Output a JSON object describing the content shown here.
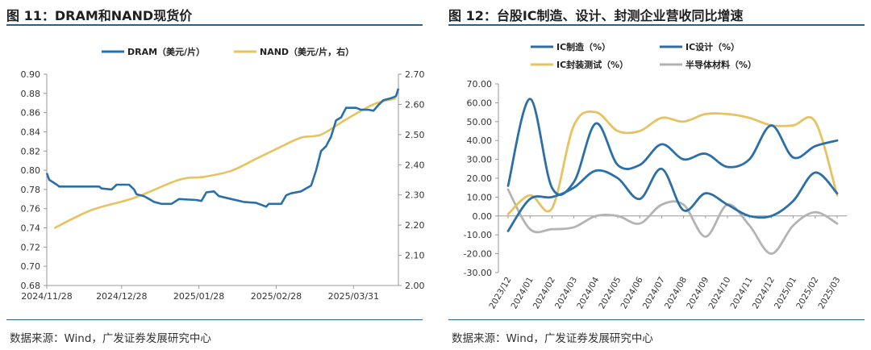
{
  "panel_left": {
    "title": "图 11：DRAM和NAND现货价",
    "source": "数据来源：Wind，广发证券发展研究中心"
  },
  "panel_right": {
    "title": "图 12：台股IC制造、设计、封测企业营收同比增速",
    "source": "数据来源：Wind，广发证券发展研究中心"
  },
  "chart_data": [
    {
      "type": "line",
      "legend_position": "top",
      "grid": false,
      "x_ticks": [
        "2024/11/28",
        "2024/12/28",
        "2025/01/28",
        "2025/02/28",
        "2025/03/31"
      ],
      "y_left": {
        "lim": [
          0.68,
          0.9
        ],
        "ticks": [
          "0.68",
          "0.70",
          "0.72",
          "0.74",
          "0.76",
          "0.78",
          "0.80",
          "0.82",
          "0.84",
          "0.86",
          "0.88",
          "0.90"
        ]
      },
      "y_right": {
        "lim": [
          2.0,
          2.7
        ],
        "ticks": [
          "2.00",
          "2.10",
          "2.20",
          "2.30",
          "2.40",
          "2.50",
          "2.60",
          "2.70"
        ]
      },
      "series": [
        {
          "name": "DRAM（美元/片）",
          "color": "#2a6fa8",
          "axis": "left",
          "values": [
            [
              "2024/11/28",
              0.797
            ],
            [
              "2024/11/29",
              0.79
            ],
            [
              "2024/12/02",
              0.785
            ],
            [
              "2024/12/03",
              0.783
            ],
            [
              "2024/12/10",
              0.783
            ],
            [
              "2024/12/19",
              0.783
            ],
            [
              "2024/12/20",
              0.781
            ],
            [
              "2024/12/24",
              0.78
            ],
            [
              "2024/12/26",
              0.785
            ],
            [
              "2024/12/31",
              0.785
            ],
            [
              "2025/01/02",
              0.78
            ],
            [
              "2025/01/03",
              0.775
            ],
            [
              "2025/01/06",
              0.773
            ],
            [
              "2025/01/08",
              0.77
            ],
            [
              "2025/01/10",
              0.767
            ],
            [
              "2025/01/13",
              0.765
            ],
            [
              "2025/01/17",
              0.765
            ],
            [
              "2025/01/20",
              0.77
            ],
            [
              "2025/01/27",
              0.769
            ],
            [
              "2025/01/29",
              0.768
            ],
            [
              "2025/01/31",
              0.777
            ],
            [
              "2025/02/03",
              0.778
            ],
            [
              "2025/02/05",
              0.773
            ],
            [
              "2025/02/10",
              0.77
            ],
            [
              "2025/02/15",
              0.767
            ],
            [
              "2025/02/20",
              0.766
            ],
            [
              "2025/02/24",
              0.762
            ],
            [
              "2025/02/25",
              0.765
            ],
            [
              "2025/03/02",
              0.765
            ],
            [
              "2025/03/04",
              0.774
            ],
            [
              "2025/03/06",
              0.776
            ],
            [
              "2025/03/10",
              0.778
            ],
            [
              "2025/03/14",
              0.784
            ],
            [
              "2025/03/16",
              0.8
            ],
            [
              "2025/03/18",
              0.82
            ],
            [
              "2025/03/20",
              0.825
            ],
            [
              "2025/03/22",
              0.835
            ],
            [
              "2025/03/24",
              0.852
            ],
            [
              "2025/03/26",
              0.855
            ],
            [
              "2025/03/28",
              0.865
            ],
            [
              "2025/04/01",
              0.865
            ],
            [
              "2025/04/03",
              0.863
            ],
            [
              "2025/04/06",
              0.863
            ],
            [
              "2025/04/08",
              0.862
            ],
            [
              "2025/04/10",
              0.868
            ],
            [
              "2025/04/12",
              0.873
            ],
            [
              "2025/04/15",
              0.875
            ],
            [
              "2025/04/17",
              0.877
            ],
            [
              "2025/04/18",
              0.885
            ]
          ]
        },
        {
          "name": "NAND（美元/片，右）",
          "color": "#e6c360",
          "axis": "right",
          "values": [
            [
              "2024/12/01",
              2.19
            ],
            [
              "2024/12/16",
              2.25
            ],
            [
              "2025/01/02",
              2.29
            ],
            [
              "2025/01/20",
              2.35
            ],
            [
              "2025/01/30",
              2.36
            ],
            [
              "2025/02/10",
              2.38
            ],
            [
              "2025/02/20",
              2.42
            ],
            [
              "2025/03/02",
              2.46
            ],
            [
              "2025/03/10",
              2.49
            ],
            [
              "2025/03/18",
              2.5
            ],
            [
              "2025/03/28",
              2.55
            ],
            [
              "2025/04/08",
              2.6
            ],
            [
              "2025/04/17",
              2.62
            ]
          ]
        }
      ]
    },
    {
      "type": "line",
      "legend_position": "top",
      "grid": false,
      "categories": [
        "2023/12",
        "2024/01",
        "2024/02",
        "2024/03",
        "2024/04",
        "2024/05",
        "2024/06",
        "2024/07",
        "2024/08",
        "2024/09",
        "2024/10",
        "2024/11",
        "2024/12",
        "2025/01",
        "2025/02",
        "2025/03"
      ],
      "y_ticks": [
        "-30.00",
        "-20.00",
        "-10.00",
        "0.00",
        "10.00",
        "20.00",
        "30.00",
        "40.00",
        "50.00",
        "60.00",
        "70.00"
      ],
      "ylim": [
        -30,
        70
      ],
      "series": [
        {
          "name": "IC制造（%）",
          "color": "#2a6fa8",
          "values": [
            -8,
            9,
            10,
            15,
            24,
            20,
            9,
            25,
            3,
            12,
            6,
            0,
            0,
            8,
            23,
            12
          ]
        },
        {
          "name": "IC设计（%）",
          "color": "#2a6fa8",
          "values": [
            16,
            62,
            15,
            18,
            49,
            27,
            27,
            38,
            30,
            33,
            26,
            30,
            48,
            31,
            37,
            40
          ]
        },
        {
          "name": "IC封装测试（%）",
          "color": "#e6c360",
          "values": [
            1,
            11,
            4,
            48,
            55,
            45,
            45,
            52,
            50,
            54,
            54,
            52,
            48,
            48,
            50,
            11
          ]
        },
        {
          "name": "半导体材料（%）",
          "color": "#b3b3b3",
          "values": [
            14,
            -7,
            -7,
            -6,
            0,
            0,
            -4,
            6,
            6,
            -11,
            6,
            -5,
            -20,
            -5,
            2,
            -4
          ]
        }
      ]
    }
  ]
}
